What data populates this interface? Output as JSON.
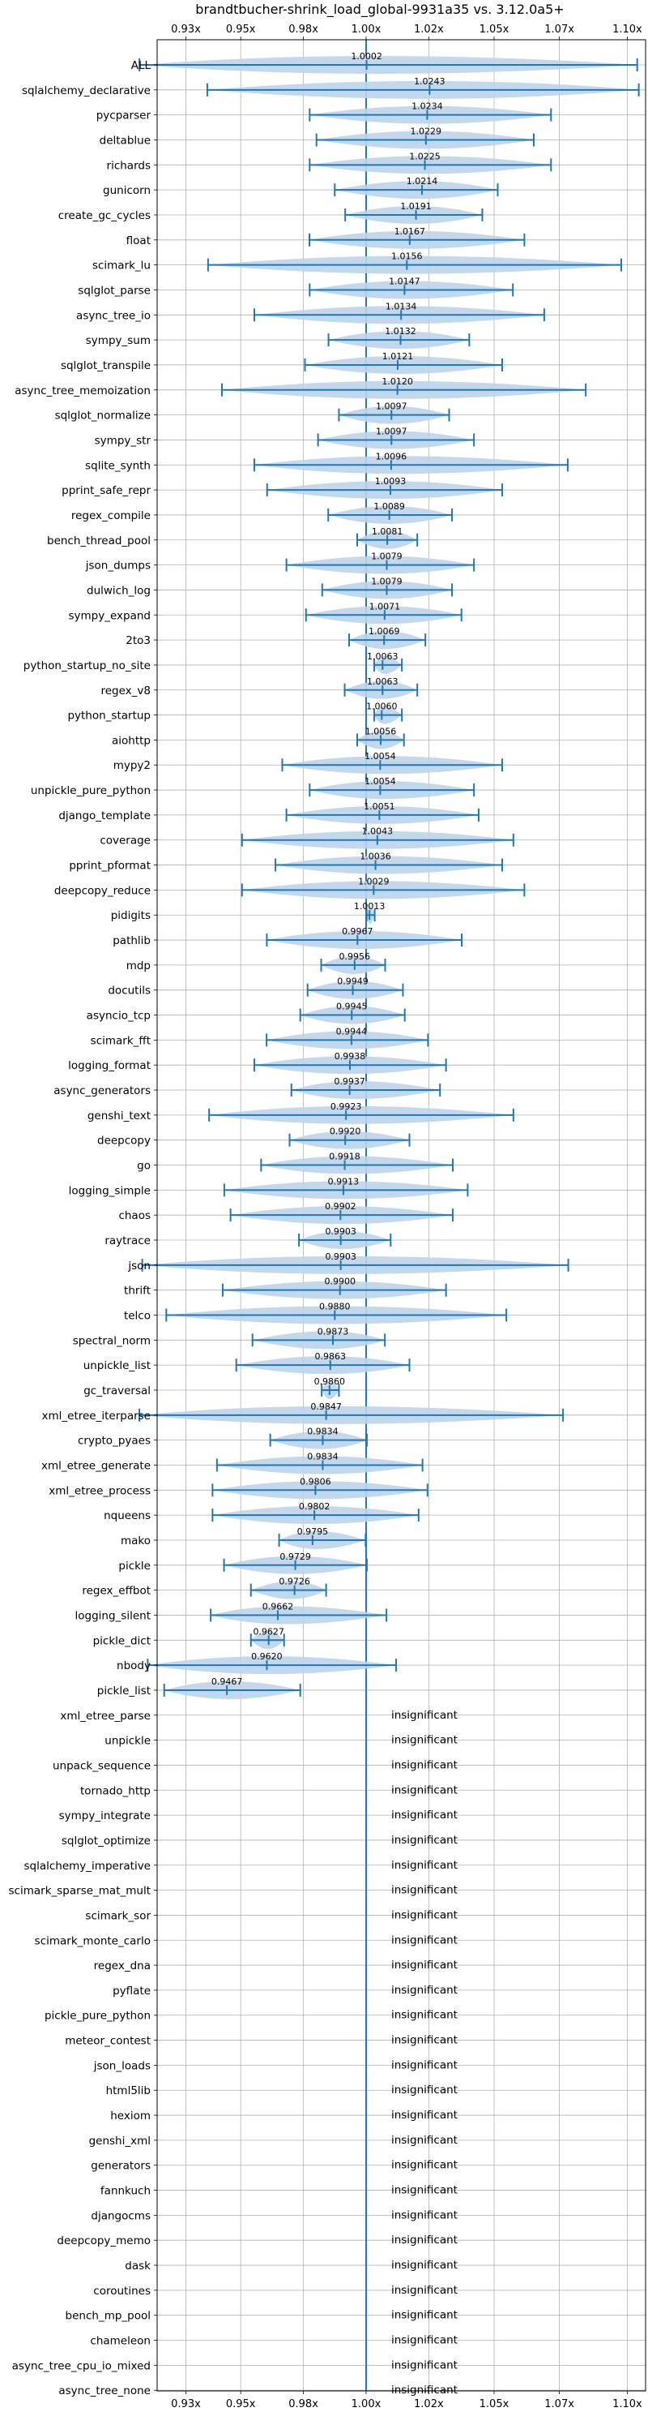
{
  "chart_data": {
    "type": "violin",
    "title": "brandtbucher-shrink_load_global-9931a35 vs. 3.12.0a5+",
    "x_ticks": [
      "0.93x",
      "0.95x",
      "0.98x",
      "1.00x",
      "1.02x",
      "1.05x",
      "1.07x",
      "1.10x"
    ],
    "x_tick_values": [
      0.931,
      0.952,
      0.976,
      1.0,
      1.024,
      1.049,
      1.074,
      1.1
    ],
    "xlim": [
      0.92,
      1.107
    ],
    "reference_line": 1.0,
    "grid": true,
    "insignificant_label": "insignificant",
    "benchmarks": [
      {
        "name": "ALL",
        "value": 1.0002,
        "label": "1.0002",
        "min": 0.9132,
        "max": 1.1038
      },
      {
        "name": "sqlalchemy_declarative",
        "value": 1.0243,
        "label": "1.0243",
        "min": 0.9392,
        "max": 1.1044
      },
      {
        "name": "pycparser",
        "value": 1.0234,
        "label": "1.0234",
        "min": 0.9784,
        "max": 1.0708
      },
      {
        "name": "deltablue",
        "value": 1.0229,
        "label": "1.0229",
        "min": 0.981,
        "max": 1.0642
      },
      {
        "name": "richards",
        "value": 1.0225,
        "label": "1.0225",
        "min": 0.9784,
        "max": 1.0708
      },
      {
        "name": "gunicorn",
        "value": 1.0214,
        "label": "1.0214",
        "min": 0.988,
        "max": 1.0504
      },
      {
        "name": "create_gc_cycles",
        "value": 1.0191,
        "label": "1.0191",
        "min": 0.992,
        "max": 1.0445
      },
      {
        "name": "float",
        "value": 1.0167,
        "label": "1.0167",
        "min": 0.9783,
        "max": 1.0606
      },
      {
        "name": "scimark_lu",
        "value": 1.0156,
        "label": "1.0156",
        "min": 0.9395,
        "max": 1.0977
      },
      {
        "name": "sqlglot_parse",
        "value": 1.0147,
        "label": "1.0147",
        "min": 0.9784,
        "max": 1.0562
      },
      {
        "name": "async_tree_io",
        "value": 1.0134,
        "label": "1.0134",
        "min": 0.9572,
        "max": 1.0682
      },
      {
        "name": "sympy_sum",
        "value": 1.0132,
        "label": "1.0132",
        "min": 0.9856,
        "max": 1.0395
      },
      {
        "name": "sqlglot_transpile",
        "value": 1.0121,
        "label": "1.0121",
        "min": 0.9766,
        "max": 1.0521
      },
      {
        "name": "async_tree_memoization",
        "value": 1.012,
        "label": "1.0120",
        "min": 0.9448,
        "max": 1.0841
      },
      {
        "name": "sqlglot_normalize",
        "value": 1.0097,
        "label": "1.0097",
        "min": 0.9896,
        "max": 1.0318
      },
      {
        "name": "sympy_str",
        "value": 1.0097,
        "label": "1.0097",
        "min": 0.9816,
        "max": 1.0413
      },
      {
        "name": "sqlite_synth",
        "value": 1.0096,
        "label": "1.0096",
        "min": 0.9572,
        "max": 1.0772
      },
      {
        "name": "pprint_safe_repr",
        "value": 1.0093,
        "label": "1.0093",
        "min": 0.9621,
        "max": 1.0521
      },
      {
        "name": "regex_compile",
        "value": 1.0089,
        "label": "1.0089",
        "min": 0.9855,
        "max": 1.0329
      },
      {
        "name": "bench_thread_pool",
        "value": 1.0081,
        "label": "1.0081",
        "min": 0.9966,
        "max": 1.0196
      },
      {
        "name": "json_dumps",
        "value": 1.0079,
        "label": "1.0079",
        "min": 0.9695,
        "max": 1.0413
      },
      {
        "name": "dulwich_log",
        "value": 1.0079,
        "label": "1.0079",
        "min": 0.9832,
        "max": 1.0329
      },
      {
        "name": "sympy_expand",
        "value": 1.0071,
        "label": "1.0071",
        "min": 0.977,
        "max": 1.0365
      },
      {
        "name": "2to3",
        "value": 1.0069,
        "label": "1.0069",
        "min": 0.9935,
        "max": 1.0227
      },
      {
        "name": "python_startup_no_site",
        "value": 1.0063,
        "label": "1.0063",
        "min": 1.0031,
        "max": 1.0137
      },
      {
        "name": "regex_v8",
        "value": 1.0063,
        "label": "1.0063",
        "min": 0.9918,
        "max": 1.0196
      },
      {
        "name": "python_startup",
        "value": 1.006,
        "label": "1.0060",
        "min": 1.0031,
        "max": 1.0137
      },
      {
        "name": "aiohttp",
        "value": 1.0056,
        "label": "1.0056",
        "min": 0.9966,
        "max": 1.0145
      },
      {
        "name": "mypy2",
        "value": 1.0054,
        "label": "1.0054",
        "min": 0.9679,
        "max": 1.0521
      },
      {
        "name": "unpickle_pure_python",
        "value": 1.0054,
        "label": "1.0054",
        "min": 0.9784,
        "max": 1.0413
      },
      {
        "name": "django_template",
        "value": 1.0051,
        "label": "1.0051",
        "min": 0.9695,
        "max": 1.0431
      },
      {
        "name": "coverage",
        "value": 1.0043,
        "label": "1.0043",
        "min": 0.9525,
        "max": 1.0564
      },
      {
        "name": "pprint_pformat",
        "value": 1.0036,
        "label": "1.0036",
        "min": 0.9653,
        "max": 1.0521
      },
      {
        "name": "deepcopy_reduce",
        "value": 1.0029,
        "label": "1.0029",
        "min": 0.9525,
        "max": 1.0606
      },
      {
        "name": "pidigits",
        "value": 1.0013,
        "label": "1.0013",
        "min": 1.0002,
        "max": 1.0033
      },
      {
        "name": "pathlib",
        "value": 0.9967,
        "label": "0.9967",
        "min": 0.962,
        "max": 1.0366
      },
      {
        "name": "mdp",
        "value": 0.9956,
        "label": "0.9956",
        "min": 0.9828,
        "max": 1.0073
      },
      {
        "name": "docutils",
        "value": 0.9949,
        "label": "0.9949",
        "min": 0.9776,
        "max": 1.0141
      },
      {
        "name": "asyncio_tcp",
        "value": 0.9945,
        "label": "0.9945",
        "min": 0.9748,
        "max": 1.0148
      },
      {
        "name": "scimark_fft",
        "value": 0.9944,
        "label": "0.9944",
        "min": 0.9619,
        "max": 1.0237
      },
      {
        "name": "logging_format",
        "value": 0.9938,
        "label": "0.9938",
        "min": 0.9572,
        "max": 1.0306
      },
      {
        "name": "async_generators",
        "value": 0.9937,
        "label": "0.9937",
        "min": 0.9714,
        "max": 1.0283
      },
      {
        "name": "genshi_text",
        "value": 0.9923,
        "label": "0.9923",
        "min": 0.9399,
        "max": 1.0564
      },
      {
        "name": "deepcopy",
        "value": 0.992,
        "label": "0.9920",
        "min": 0.9707,
        "max": 1.0166
      },
      {
        "name": "go",
        "value": 0.9918,
        "label": "0.9918",
        "min": 0.9598,
        "max": 1.0332
      },
      {
        "name": "logging_simple",
        "value": 0.9913,
        "label": "0.9913",
        "min": 0.9457,
        "max": 1.0389
      },
      {
        "name": "chaos",
        "value": 0.9902,
        "label": "0.9902",
        "min": 0.9481,
        "max": 1.0332
      },
      {
        "name": "raytrace",
        "value": 0.9903,
        "label": "0.9903",
        "min": 0.9743,
        "max": 1.0094
      },
      {
        "name": "json",
        "value": 0.9903,
        "label": "0.9903",
        "min": 0.9143,
        "max": 1.0774
      },
      {
        "name": "thrift",
        "value": 0.99,
        "label": "0.9900",
        "min": 0.9451,
        "max": 1.0306
      },
      {
        "name": "telco",
        "value": 0.988,
        "label": "0.9880",
        "min": 0.9235,
        "max": 1.0537
      },
      {
        "name": "spectral_norm",
        "value": 0.9873,
        "label": "0.9873",
        "min": 0.9565,
        "max": 1.0072
      },
      {
        "name": "unpickle_list",
        "value": 0.9863,
        "label": "0.9863",
        "min": 0.9503,
        "max": 1.0166
      },
      {
        "name": "gc_traversal",
        "value": 0.986,
        "label": "0.9860",
        "min": 0.983,
        "max": 0.9896
      },
      {
        "name": "xml_etree_iterparse",
        "value": 0.9847,
        "label": "0.9847",
        "min": 0.9132,
        "max": 1.0754
      },
      {
        "name": "crypto_pyaes",
        "value": 0.9834,
        "label": "0.9834",
        "min": 0.9633,
        "max": 1.0003
      },
      {
        "name": "xml_etree_generate",
        "value": 0.9834,
        "label": "0.9834",
        "min": 0.9429,
        "max": 1.0216
      },
      {
        "name": "xml_etree_process",
        "value": 0.9806,
        "label": "0.9806",
        "min": 0.9412,
        "max": 1.0235
      },
      {
        "name": "nqueens",
        "value": 0.9802,
        "label": "0.9802",
        "min": 0.9412,
        "max": 1.0201
      },
      {
        "name": "mako",
        "value": 0.9795,
        "label": "0.9795",
        "min": 0.9667,
        "max": 0.9998
      },
      {
        "name": "pickle",
        "value": 0.9729,
        "label": "0.9729",
        "min": 0.9456,
        "max": 1.0003
      },
      {
        "name": "regex_effbot",
        "value": 0.9726,
        "label": "0.9726",
        "min": 0.9559,
        "max": 0.9847
      },
      {
        "name": "logging_silent",
        "value": 0.9662,
        "label": "0.9662",
        "min": 0.9405,
        "max": 1.0078
      },
      {
        "name": "pickle_dict",
        "value": 0.9627,
        "label": "0.9627",
        "min": 0.9559,
        "max": 0.9686
      },
      {
        "name": "nbody",
        "value": 0.962,
        "label": "0.9620",
        "min": 0.9164,
        "max": 1.0115
      },
      {
        "name": "pickle_list",
        "value": 0.9467,
        "label": "0.9467",
        "min": 0.9227,
        "max": 0.9748
      },
      {
        "name": "xml_etree_parse",
        "insignificant": true
      },
      {
        "name": "unpickle",
        "insignificant": true
      },
      {
        "name": "unpack_sequence",
        "insignificant": true
      },
      {
        "name": "tornado_http",
        "insignificant": true
      },
      {
        "name": "sympy_integrate",
        "insignificant": true
      },
      {
        "name": "sqlglot_optimize",
        "insignificant": true
      },
      {
        "name": "sqlalchemy_imperative",
        "insignificant": true
      },
      {
        "name": "scimark_sparse_mat_mult",
        "insignificant": true
      },
      {
        "name": "scimark_sor",
        "insignificant": true
      },
      {
        "name": "scimark_monte_carlo",
        "insignificant": true
      },
      {
        "name": "regex_dna",
        "insignificant": true
      },
      {
        "name": "pyflate",
        "insignificant": true
      },
      {
        "name": "pickle_pure_python",
        "insignificant": true
      },
      {
        "name": "meteor_contest",
        "insignificant": true
      },
      {
        "name": "json_loads",
        "insignificant": true
      },
      {
        "name": "html5lib",
        "insignificant": true
      },
      {
        "name": "hexiom",
        "insignificant": true
      },
      {
        "name": "genshi_xml",
        "insignificant": true
      },
      {
        "name": "generators",
        "insignificant": true
      },
      {
        "name": "fannkuch",
        "insignificant": true
      },
      {
        "name": "djangocms",
        "insignificant": true
      },
      {
        "name": "deepcopy_memo",
        "insignificant": true
      },
      {
        "name": "dask",
        "insignificant": true
      },
      {
        "name": "coroutines",
        "insignificant": true
      },
      {
        "name": "bench_mp_pool",
        "insignificant": true
      },
      {
        "name": "chameleon",
        "insignificant": true
      },
      {
        "name": "async_tree_cpu_io_mixed",
        "insignificant": true
      },
      {
        "name": "async_tree_none",
        "insignificant": true
      }
    ],
    "colors": {
      "line": "#1f77b4",
      "violin": "#bcd4ea",
      "grid": "#b0b0b0",
      "text": "#000000"
    }
  }
}
